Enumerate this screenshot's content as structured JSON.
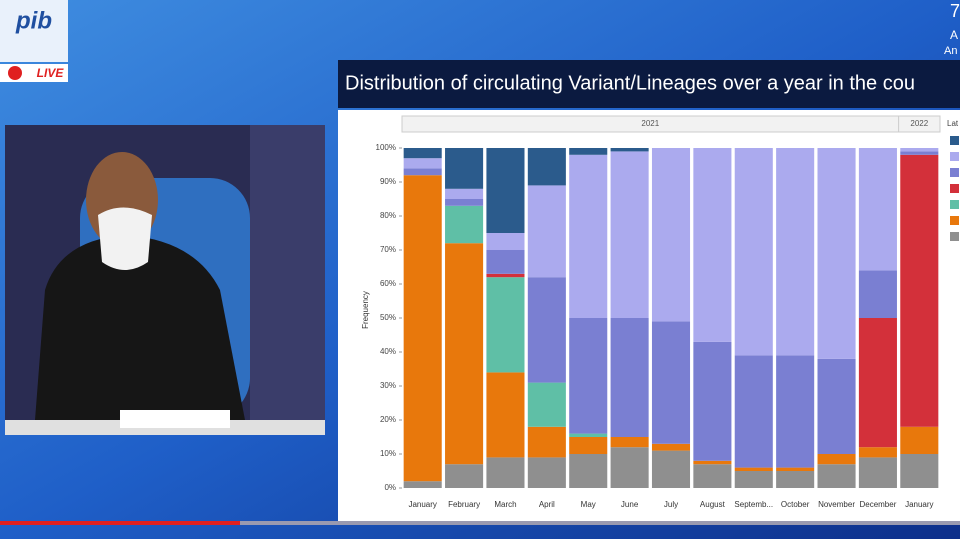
{
  "overlay": {
    "logo": "pib",
    "live": "LIVE",
    "corner_text": [
      "7",
      "A",
      "An"
    ]
  },
  "chart_data": {
    "type": "stacked_bar",
    "title": "Distribution of circulating Variant/Lineages over a year in the cou",
    "y_label": "Frequency",
    "year_labels": [
      "2021",
      "2022"
    ],
    "legend_title": "Lat",
    "categories": [
      "January",
      "February",
      "March",
      "April",
      "May",
      "June",
      "July",
      "August",
      "Septemb...",
      "October",
      "November",
      "December",
      "January"
    ],
    "ylim": [
      0,
      100
    ],
    "yticks": [
      {
        "value": 0,
        "label": "0%"
      },
      {
        "value": 10,
        "label": "10%"
      },
      {
        "value": 20,
        "label": "20%"
      },
      {
        "value": 30,
        "label": "30%"
      },
      {
        "value": 40,
        "label": "40%"
      },
      {
        "value": 50,
        "label": "50%"
      },
      {
        "value": 60,
        "label": "60%"
      },
      {
        "value": 70,
        "label": "70%"
      },
      {
        "value": 80,
        "label": "80%"
      },
      {
        "value": 90,
        "label": "90%"
      },
      {
        "value": 100,
        "label": "100%"
      }
    ],
    "series": [
      {
        "color": "#8f8f8f",
        "values": [
          2,
          7,
          9,
          9,
          10,
          12,
          11,
          7,
          5,
          5,
          7,
          9,
          10
        ]
      },
      {
        "color": "#e8780c",
        "values": [
          90,
          65,
          25,
          9,
          5,
          3,
          2,
          1,
          1,
          1,
          3,
          3,
          8
        ]
      },
      {
        "color": "#5fbfa6",
        "values": [
          0,
          11,
          28,
          13,
          1,
          0,
          0,
          0,
          0,
          0,
          0,
          0,
          0
        ]
      },
      {
        "color": "#d3303a",
        "values": [
          0,
          0,
          1,
          0,
          0,
          0,
          0,
          0,
          0,
          0,
          0,
          38,
          80
        ]
      },
      {
        "color": "#7a7fd2",
        "values": [
          2,
          2,
          7,
          31,
          34,
          35,
          36,
          35,
          33,
          33,
          28,
          14,
          1
        ]
      },
      {
        "color": "#abaaee",
        "values": [
          3,
          3,
          5,
          27,
          48,
          49,
          51,
          57,
          61,
          61,
          62,
          36,
          1
        ]
      },
      {
        "color": "#2b5b8c",
        "values": [
          3,
          12,
          25,
          11,
          2,
          1,
          0,
          0,
          0,
          0,
          0,
          0,
          0
        ]
      }
    ]
  }
}
